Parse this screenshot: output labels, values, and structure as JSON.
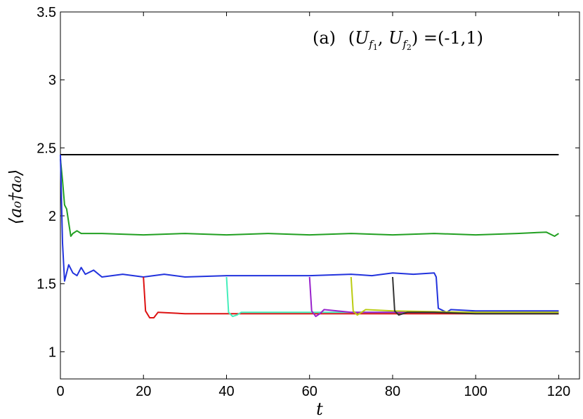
{
  "chart_data": {
    "type": "line",
    "xlabel": "t",
    "ylabel": "⟨a₀†a₀⟩",
    "annotation": "(a) (U_f1, U_f2) =(-1,1)",
    "annotation_parts": {
      "prefix": "(a)",
      "u1": "U",
      "f1": "f",
      "s1": "1",
      "u2": "U",
      "f2": "f",
      "s2": "2",
      "value": "=(-1,1)"
    },
    "xlim": [
      0,
      125
    ],
    "ylim": [
      0.8,
      3.5
    ],
    "xticks": [
      0,
      20,
      40,
      60,
      80,
      100,
      120
    ],
    "yticks": [
      1,
      1.5,
      2,
      2.5,
      3,
      3.5
    ],
    "ytick_labels": [
      "1",
      "1.5",
      "2",
      "2.5",
      "3",
      "3.5"
    ],
    "grid": false,
    "series": [
      {
        "color": "#000000",
        "points": [
          [
            0,
            2.45
          ],
          [
            120,
            2.45
          ]
        ]
      },
      {
        "color": "#22a022",
        "points": [
          [
            0,
            2.42
          ],
          [
            0.5,
            2.26
          ],
          [
            1,
            2.08
          ],
          [
            1.5,
            2.05
          ],
          [
            2,
            1.95
          ],
          [
            2.5,
            1.85
          ],
          [
            3,
            1.87
          ],
          [
            4,
            1.89
          ],
          [
            5,
            1.87
          ],
          [
            10,
            1.87
          ],
          [
            20,
            1.86
          ],
          [
            30,
            1.87
          ],
          [
            40,
            1.86
          ],
          [
            50,
            1.87
          ],
          [
            60,
            1.86
          ],
          [
            70,
            1.87
          ],
          [
            80,
            1.86
          ],
          [
            90,
            1.87
          ],
          [
            100,
            1.86
          ],
          [
            110,
            1.87
          ],
          [
            117,
            1.88
          ],
          [
            119,
            1.85
          ],
          [
            120,
            1.87
          ]
        ]
      },
      {
        "color": "#2233dd",
        "points": [
          [
            0,
            2.45
          ],
          [
            0.5,
            1.8
          ],
          [
            1,
            1.52
          ],
          [
            2,
            1.64
          ],
          [
            3,
            1.58
          ],
          [
            4,
            1.56
          ],
          [
            5,
            1.62
          ],
          [
            6,
            1.57
          ],
          [
            8,
            1.6
          ],
          [
            10,
            1.55
          ],
          [
            15,
            1.57
          ],
          [
            20,
            1.55
          ],
          [
            25,
            1.57
          ],
          [
            30,
            1.55
          ],
          [
            40,
            1.56
          ],
          [
            50,
            1.56
          ],
          [
            60,
            1.56
          ],
          [
            70,
            1.57
          ],
          [
            75,
            1.56
          ],
          [
            80,
            1.58
          ],
          [
            85,
            1.57
          ],
          [
            90,
            1.58
          ],
          [
            90.5,
            1.55
          ],
          [
            91,
            1.32
          ],
          [
            93,
            1.29
          ],
          [
            94,
            1.31
          ],
          [
            100,
            1.3
          ],
          [
            110,
            1.3
          ],
          [
            120,
            1.3
          ]
        ]
      },
      {
        "color": "#dd1111",
        "points": [
          [
            20,
            1.55
          ],
          [
            20.5,
            1.3
          ],
          [
            21.5,
            1.25
          ],
          [
            22.5,
            1.25
          ],
          [
            23.5,
            1.29
          ],
          [
            30,
            1.28
          ],
          [
            40,
            1.28
          ],
          [
            60,
            1.28
          ],
          [
            80,
            1.28
          ],
          [
            100,
            1.28
          ],
          [
            120,
            1.28
          ]
        ]
      },
      {
        "color": "#44eebb",
        "points": [
          [
            40,
            1.55
          ],
          [
            40.5,
            1.29
          ],
          [
            41.5,
            1.26
          ],
          [
            42.5,
            1.27
          ],
          [
            43.5,
            1.29
          ],
          [
            50,
            1.29
          ],
          [
            60,
            1.29
          ],
          [
            80,
            1.29
          ],
          [
            100,
            1.29
          ],
          [
            120,
            1.29
          ]
        ]
      },
      {
        "color": "#9922cc",
        "points": [
          [
            60,
            1.55
          ],
          [
            60.5,
            1.3
          ],
          [
            61.5,
            1.26
          ],
          [
            62.5,
            1.28
          ],
          [
            63.5,
            1.31
          ],
          [
            70,
            1.29
          ],
          [
            80,
            1.29
          ],
          [
            100,
            1.29
          ],
          [
            120,
            1.29
          ]
        ]
      },
      {
        "color": "#bbcc11",
        "points": [
          [
            70,
            1.55
          ],
          [
            70.5,
            1.3
          ],
          [
            71.5,
            1.27
          ],
          [
            72.5,
            1.29
          ],
          [
            73.5,
            1.31
          ],
          [
            80,
            1.3
          ],
          [
            100,
            1.29
          ],
          [
            120,
            1.29
          ]
        ]
      },
      {
        "color": "#333333",
        "points": [
          [
            80,
            1.55
          ],
          [
            80.5,
            1.3
          ],
          [
            81.5,
            1.27
          ],
          [
            82.5,
            1.28
          ],
          [
            83.5,
            1.29
          ],
          [
            90,
            1.29
          ],
          [
            100,
            1.28
          ],
          [
            120,
            1.28
          ]
        ]
      }
    ]
  }
}
